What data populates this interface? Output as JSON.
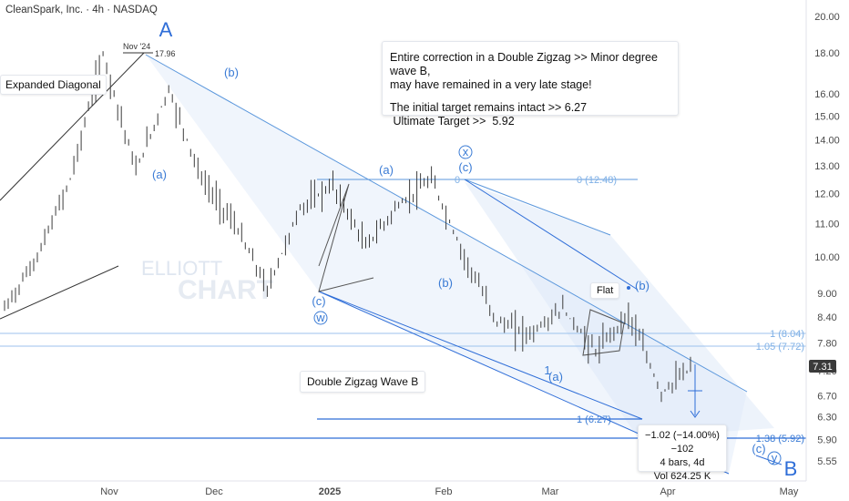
{
  "header": {
    "symbol_line": "CleanSpark, Inc. · 4h · NASDAQ"
  },
  "note": {
    "line1": "Entire correction in a Double Zigzag >> Minor degree wave B,",
    "line2": "may have remained in a very late stage!",
    "line3": "The initial target remains intact >>  6.27",
    "line4": " Ultimate Target >>  5.92"
  },
  "labels": {
    "expanded_diagonal": "Expanded Diagonal",
    "double_zigzag": "Double Zigzag Wave B",
    "flat": "Flat",
    "high_date": "Nov '24",
    "high_value": "17.96",
    "watermark_1": "ELLIOTT",
    "watermark_2": "CHART"
  },
  "waves": {
    "A": "A",
    "B": "B",
    "a1": "(a)",
    "b1": "(b)",
    "a2": "(a)",
    "c2": "(c)",
    "w": "w",
    "b2": "(b)",
    "x": "x",
    "c_x": "(c)",
    "zero_mark": "0",
    "a3": "(a)",
    "one_mark": "1",
    "b3": "(b)",
    "c3": "(c)",
    "y": "y"
  },
  "fib_labels": {
    "f0": "0 (12.48)",
    "f1": "1 (8.04)",
    "f105": "1.05 (7.72)",
    "f1_627": "1 (6.27)",
    "f138": "1.38 (5.92)"
  },
  "measure": {
    "line1": "−1.02 (−14.00%) −102",
    "line2": "4 bars, 4d",
    "line3": "Vol 624.25 K"
  },
  "price_axis": {
    "ticks": [
      "20.00",
      "18.00",
      "16.00",
      "15.00",
      "14.00",
      "13.00",
      "12.00",
      "11.00",
      "10.00",
      "9.00",
      "8.40",
      "7.80",
      "7.20",
      "6.70",
      "6.30",
      "5.90",
      "5.55"
    ],
    "current": "7.31"
  },
  "time_axis": {
    "ticks": [
      "Nov",
      "Dec",
      "2025",
      "Feb",
      "Mar",
      "Apr",
      "May"
    ]
  },
  "chart_data": {
    "type": "line",
    "title": "CleanSpark, Inc. · 4h · NASDAQ",
    "x": [
      "Oct '24",
      "Nov '24",
      "Nov '24",
      "Nov '24",
      "Dec '24",
      "Dec '24",
      "Dec '24",
      "Dec '24",
      "Jan '25",
      "Jan '25",
      "Jan '25",
      "Jan '25",
      "Feb '25",
      "Feb '25",
      "Feb '25",
      "Feb '25",
      "Mar '25",
      "Mar '25",
      "Mar '25",
      "Mar '25",
      "Apr '25",
      "Apr '25"
    ],
    "series": [
      {
        "values": [
          8.6,
          10.0,
          12.5,
          17.96,
          12.8,
          16.2,
          12.5,
          11.0,
          9.1,
          11.5,
          12.3,
          10.3,
          11.6,
          12.48,
          10.0,
          8.3,
          8.0,
          8.6,
          7.6,
          8.5,
          6.75,
          7.31
        ]
      }
    ],
    "ylim": [
      5.2,
      21.0
    ],
    "log_scale": true,
    "current_price": 7.31,
    "fib_levels": [
      12.48,
      8.04,
      7.72,
      6.27,
      5.92
    ],
    "grid": false,
    "xlabel": "",
    "ylabel": ""
  }
}
